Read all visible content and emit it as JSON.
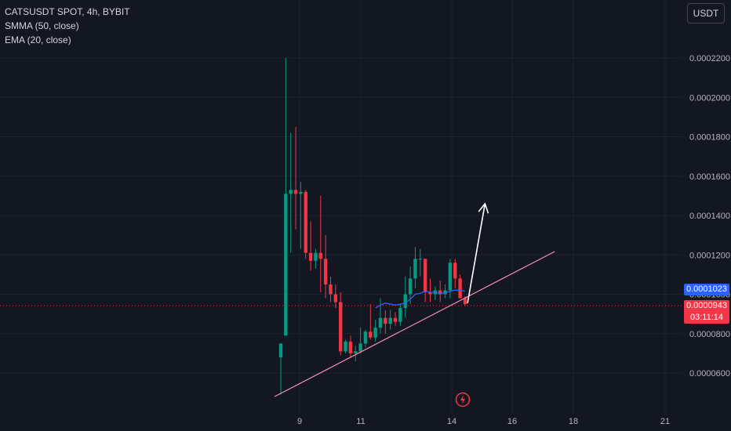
{
  "legend": {
    "title": "CATSUSDT SPOT, 4h, BYBIT",
    "indicator1": "SMMA (50, close)",
    "indicator2": "EMA (20, close)"
  },
  "currency": "USDT",
  "price_tags": {
    "smma_value": "0.0001023",
    "last_price": "0.0000943",
    "countdown": "03:11:14"
  },
  "icons": {
    "bolt": "lightning-bolt-icon"
  },
  "colors": {
    "background": "#131722",
    "up": "#089981",
    "down": "#f23645",
    "ma_line": "#2962ff",
    "trendline": "#f48fb1",
    "arrow": "#ffffff"
  },
  "chart_data": {
    "type": "candlestick",
    "ylim": [
      5.2e-05,
      0.0002282
    ],
    "y_ticks": [
      "0.0000600",
      "0.0000800",
      "0.0001000",
      "0.0001200",
      "0.0001400",
      "0.0001600",
      "0.0001800",
      "0.0002000",
      "0.0002200"
    ],
    "x_ticks": [
      "9",
      "11",
      "14",
      "16",
      "18",
      "21"
    ],
    "x_tick_dates": [
      "9",
      "11",
      "14",
      "16",
      "18",
      "21"
    ],
    "candles": [
      {
        "o": 6.8e-05,
        "h": 7.5e-05,
        "l": 4.9e-05,
        "c": 7.5e-05
      },
      {
        "o": 7.9e-05,
        "h": 0.00022,
        "l": 7.9e-05,
        "c": 0.000151
      },
      {
        "o": 0.000151,
        "h": 0.000182,
        "l": 0.000121,
        "c": 0.000153
      },
      {
        "o": 0.000153,
        "h": 0.000185,
        "l": 0.000133,
        "c": 0.000151
      },
      {
        "o": 0.000151,
        "h": 0.000157,
        "l": 0.000123,
        "c": 0.000152
      },
      {
        "o": 0.000152,
        "h": 0.000153,
        "l": 0.000118,
        "c": 0.000121
      },
      {
        "o": 0.000121,
        "h": 0.000137,
        "l": 0.000112,
        "c": 0.000117
      },
      {
        "o": 0.000117,
        "h": 0.000123,
        "l": 0.000113,
        "c": 0.000121
      },
      {
        "o": 0.000121,
        "h": 0.00015,
        "l": 0.000101,
        "c": 0.000118
      },
      {
        "o": 0.000118,
        "h": 0.00013,
        "l": 9.8e-05,
        "c": 0.000105
      },
      {
        "o": 0.000105,
        "h": 0.000109,
        "l": 9.6e-05,
        "c": 0.0001
      },
      {
        "o": 0.0001,
        "h": 0.000105,
        "l": 9.3e-05,
        "c": 9.6e-05
      },
      {
        "o": 9.6e-05,
        "h": 0.000101,
        "l": 6.9e-05,
        "c": 7.1e-05
      },
      {
        "o": 7.1e-05,
        "h": 7.7e-05,
        "l": 7e-05,
        "c": 7.6e-05
      },
      {
        "o": 7.6e-05,
        "h": 7.9e-05,
        "l": 6.8e-05,
        "c": 7e-05
      },
      {
        "o": 7e-05,
        "h": 7.4e-05,
        "l": 6.6e-05,
        "c": 7.1e-05
      },
      {
        "o": 7.1e-05,
        "h": 8.3e-05,
        "l": 7e-05,
        "c": 7.5e-05
      },
      {
        "o": 7.5e-05,
        "h": 8.2e-05,
        "l": 7.3e-05,
        "c": 8.1e-05
      },
      {
        "o": 8.1e-05,
        "h": 9.5e-05,
        "l": 7.7e-05,
        "c": 7.8e-05
      },
      {
        "o": 7.8e-05,
        "h": 8.7e-05,
        "l": 7.6e-05,
        "c": 8.3e-05
      },
      {
        "o": 8.3e-05,
        "h": 9.8e-05,
        "l": 8e-05,
        "c": 8.8e-05
      },
      {
        "o": 8.8e-05,
        "h": 9.2e-05,
        "l": 8e-05,
        "c": 8.5e-05
      },
      {
        "o": 8.5e-05,
        "h": 9.2e-05,
        "l": 8.2e-05,
        "c": 8.8e-05
      },
      {
        "o": 8.8e-05,
        "h": 9.1e-05,
        "l": 8.4e-05,
        "c": 8.6e-05
      },
      {
        "o": 8.6e-05,
        "h": 9.5e-05,
        "l": 8.4e-05,
        "c": 9.3e-05
      },
      {
        "o": 9.3e-05,
        "h": 0.000109,
        "l": 8.8e-05,
        "c": 0.0001
      },
      {
        "o": 0.0001,
        "h": 0.000114,
        "l": 9.5e-05,
        "c": 0.000108
      },
      {
        "o": 0.000108,
        "h": 0.000124,
        "l": 0.000103,
        "c": 0.000118
      },
      {
        "o": 0.000118,
        "h": 0.000123,
        "l": 0.000109,
        "c": 0.000118
      },
      {
        "o": 0.000118,
        "h": 0.000118,
        "l": 9.6e-05,
        "c": 0.000101
      },
      {
        "o": 0.000101,
        "h": 0.000108,
        "l": 9.6e-05,
        "c": 0.0001
      },
      {
        "o": 0.0001,
        "h": 0.000104,
        "l": 9.7e-05,
        "c": 0.000102
      },
      {
        "o": 0.000102,
        "h": 0.000107,
        "l": 9.6e-05,
        "c": 0.0001
      },
      {
        "o": 0.0001,
        "h": 0.000105,
        "l": 9.8e-05,
        "c": 0.000102
      },
      {
        "o": 0.000102,
        "h": 0.000118,
        "l": 9.8e-05,
        "c": 0.000116
      },
      {
        "o": 0.000116,
        "h": 0.000118,
        "l": 0.000103,
        "c": 0.000108
      },
      {
        "o": 0.000108,
        "h": 0.00011,
        "l": 9.8e-05,
        "c": 9.8e-05
      },
      {
        "o": 9.8e-05,
        "h": 9.9e-05,
        "l": 9.4e-05,
        "c": 9.5e-05
      }
    ],
    "ema": [
      9.3e-05,
      9.45e-05,
      9.55e-05,
      9.5e-05,
      9.45e-05,
      9.5e-05,
      9.55e-05,
      9.75e-05,
      0.0001,
      0.0001005,
      0.0001015,
      0.000101,
      0.000101,
      0.0001005,
      0.0001008,
      0.0001015,
      0.0001022,
      0.000102,
      0.0001015
    ],
    "ema_start_index": 19,
    "trendline": [
      [
        0,
        4.8e-05
      ],
      [
        55,
        0.0001217
      ]
    ],
    "arrow": [
      [
        37.5,
        9.55e-05
      ],
      [
        41,
        0.000146
      ]
    ]
  }
}
